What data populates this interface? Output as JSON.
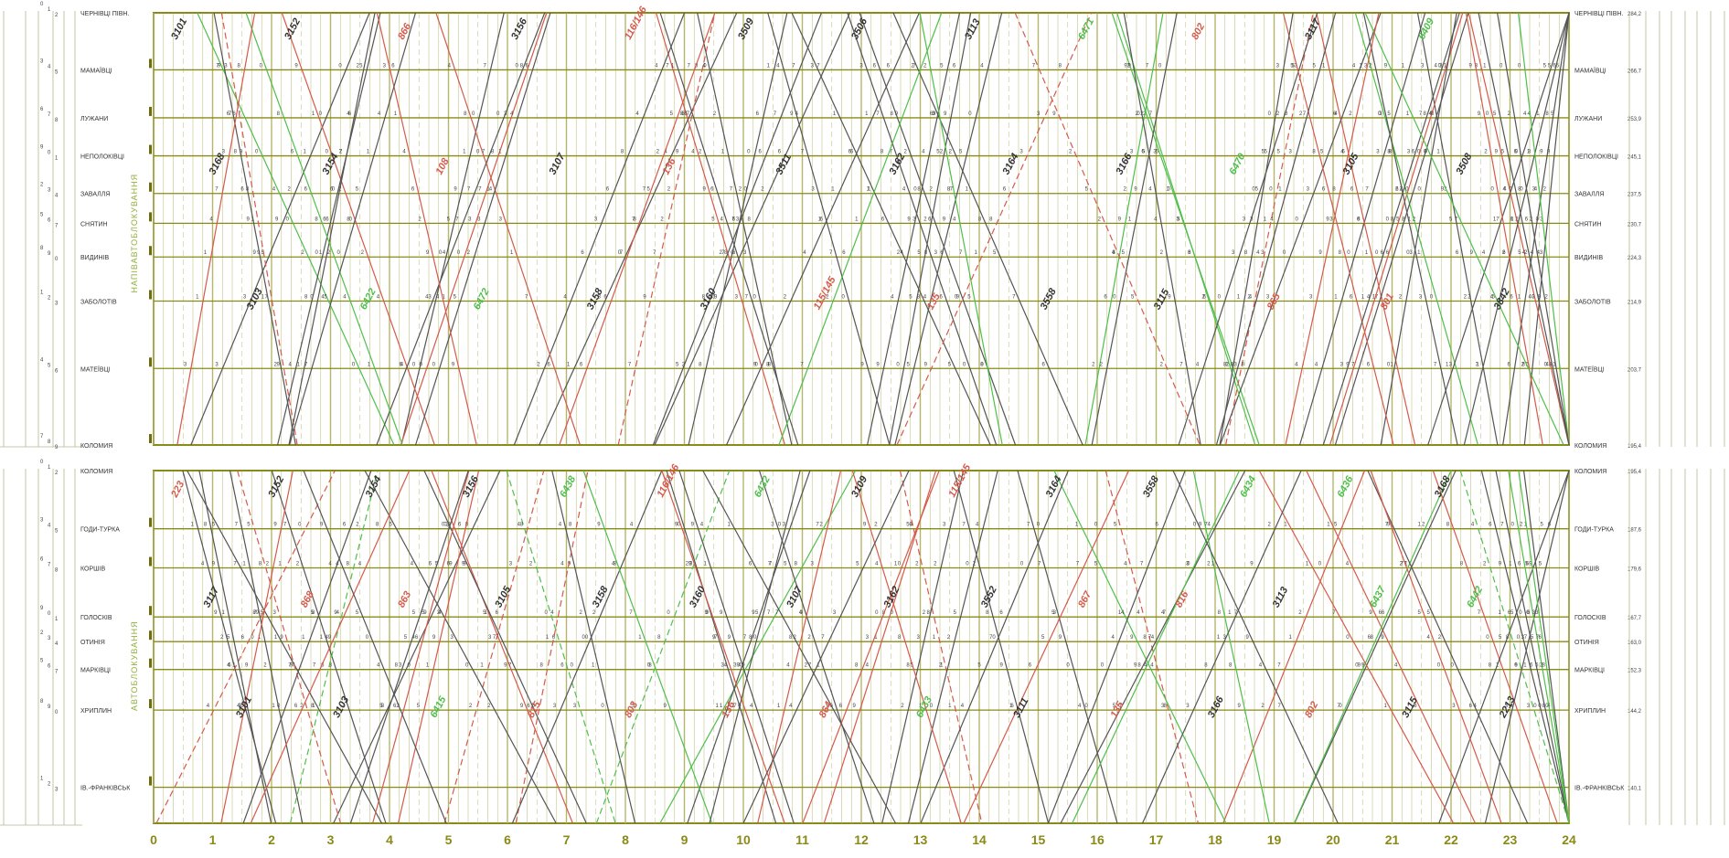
{
  "colors": {
    "frame": "#8a8a18",
    "grid": "#b5b66a",
    "freight": "#555555",
    "passenger": "#d55a4a",
    "suburban": "#4fbf4a",
    "left_table": "#b8b890"
  },
  "hours": [
    "0",
    "1",
    "2",
    "3",
    "4",
    "5",
    "6",
    "7",
    "8",
    "9",
    "10",
    "11",
    "12",
    "13",
    "14",
    "15",
    "16",
    "17",
    "18",
    "19",
    "20",
    "21",
    "22",
    "23",
    "24"
  ],
  "top_section": {
    "side_label": "НАПІВАВТОБЛОКУВАННЯ",
    "stations": [
      {
        "name": "ЧЕРНІВЦІ ПІВН.",
        "km": "284,2"
      },
      {
        "name": "МАМАЇВЦІ",
        "km": "266,7"
      },
      {
        "name": "ЛУЖАНИ",
        "km": "253,9"
      },
      {
        "name": "НЕПОЛОКІВЦІ",
        "km": "245,1"
      },
      {
        "name": "ЗАВАЛЛЯ",
        "km": "237,5"
      },
      {
        "name": "СНЯТИН",
        "km": "230,7"
      },
      {
        "name": "ВИДИНІВ",
        "km": "224,3"
      },
      {
        "name": "ЗАБОЛОТІВ",
        "km": "214,9"
      },
      {
        "name": "МАТЕЇВЦІ",
        "km": "203,7"
      },
      {
        "name": "КОЛОМИЯ",
        "km": "195,4"
      }
    ],
    "labels": [
      {
        "t": "3101",
        "type": "freight"
      },
      {
        "t": "3168",
        "type": "freight"
      },
      {
        "t": "3103",
        "type": "freight"
      },
      {
        "t": "3152",
        "type": "freight"
      },
      {
        "t": "3154",
        "type": "freight"
      },
      {
        "t": "6422",
        "type": "suburban"
      },
      {
        "t": "866",
        "type": "passenger"
      },
      {
        "t": "108",
        "type": "passenger"
      },
      {
        "t": "6472",
        "type": "suburban"
      },
      {
        "t": "3156",
        "type": "freight"
      },
      {
        "t": "3107",
        "type": "freight"
      },
      {
        "t": "3158",
        "type": "freight"
      },
      {
        "t": "116/146",
        "type": "passenger"
      },
      {
        "t": "136",
        "type": "passenger"
      },
      {
        "t": "3160",
        "type": "freight"
      },
      {
        "t": "3509",
        "type": "freight"
      },
      {
        "t": "3511",
        "type": "freight"
      },
      {
        "t": "115/145",
        "type": "passenger"
      },
      {
        "t": "3506",
        "type": "freight"
      },
      {
        "t": "3162",
        "type": "freight"
      },
      {
        "t": "135",
        "type": "passenger"
      },
      {
        "t": "3113",
        "type": "freight"
      },
      {
        "t": "3164",
        "type": "freight"
      },
      {
        "t": "3558",
        "type": "freight"
      },
      {
        "t": "6471",
        "type": "suburban"
      },
      {
        "t": "3166",
        "type": "freight"
      },
      {
        "t": "3115",
        "type": "freight"
      },
      {
        "t": "802",
        "type": "passenger"
      },
      {
        "t": "6470",
        "type": "suburban"
      },
      {
        "t": "865",
        "type": "passenger"
      },
      {
        "t": "3117",
        "type": "freight"
      },
      {
        "t": "3105",
        "type": "freight"
      },
      {
        "t": "801",
        "type": "passenger"
      },
      {
        "t": "6409",
        "type": "suburban"
      },
      {
        "t": "3508",
        "type": "freight"
      },
      {
        "t": "3842",
        "type": "freight"
      }
    ]
  },
  "bottom_section": {
    "side_label": "АВТОБЛОКУВАННЯ",
    "stations": [
      {
        "name": "КОЛОМИЯ",
        "km": "195,4"
      },
      {
        "name": "ГОДИ-ТУРКА",
        "km": "187,6"
      },
      {
        "name": "КОРШІВ",
        "km": "179,6"
      },
      {
        "name": "ГОЛОСКІВ",
        "km": "167,7"
      },
      {
        "name": "ОТИНІЯ",
        "km": "163,0"
      },
      {
        "name": "МАРКІВЦІ",
        "km": "152,3"
      },
      {
        "name": "ХРИПЛИН",
        "km": "144,2"
      },
      {
        "name": "ІВ.-ФРАНКІВСЬК",
        "km": "140,1"
      }
    ],
    "labels": [
      {
        "t": "223",
        "type": "passenger"
      },
      {
        "t": "3117",
        "type": "freight"
      },
      {
        "t": "3101",
        "type": "freight"
      },
      {
        "t": "3152",
        "type": "freight"
      },
      {
        "t": "868",
        "type": "passenger"
      },
      {
        "t": "3103",
        "type": "freight"
      },
      {
        "t": "3154",
        "type": "freight"
      },
      {
        "t": "863",
        "type": "passenger"
      },
      {
        "t": "6415",
        "type": "suburban"
      },
      {
        "t": "3156",
        "type": "freight"
      },
      {
        "t": "3105",
        "type": "freight"
      },
      {
        "t": "815",
        "type": "passenger"
      },
      {
        "t": "6438",
        "type": "suburban"
      },
      {
        "t": "3158",
        "type": "freight"
      },
      {
        "t": "803",
        "type": "passenger"
      },
      {
        "t": "116/146",
        "type": "passenger"
      },
      {
        "t": "3160",
        "type": "freight"
      },
      {
        "t": "136",
        "type": "passenger"
      },
      {
        "t": "6432",
        "type": "suburban"
      },
      {
        "t": "3107",
        "type": "freight"
      },
      {
        "t": "864",
        "type": "passenger"
      },
      {
        "t": "3109",
        "type": "freight"
      },
      {
        "t": "3162",
        "type": "freight"
      },
      {
        "t": "6433",
        "type": "suburban"
      },
      {
        "t": "115/145",
        "type": "passenger"
      },
      {
        "t": "3552",
        "type": "freight"
      },
      {
        "t": "3111",
        "type": "freight"
      },
      {
        "t": "3164",
        "type": "freight"
      },
      {
        "t": "867",
        "type": "passenger"
      },
      {
        "t": "135",
        "type": "passenger"
      },
      {
        "t": "3558",
        "type": "freight"
      },
      {
        "t": "816",
        "type": "passenger"
      },
      {
        "t": "3166",
        "type": "freight"
      },
      {
        "t": "6434",
        "type": "suburban"
      },
      {
        "t": "3113",
        "type": "freight"
      },
      {
        "t": "802",
        "type": "passenger"
      },
      {
        "t": "6436",
        "type": "suburban"
      },
      {
        "t": "6437",
        "type": "suburban"
      },
      {
        "t": "3115",
        "type": "freight"
      },
      {
        "t": "3168",
        "type": "freight"
      },
      {
        "t": "6442",
        "type": "suburban"
      },
      {
        "t": "2213",
        "type": "freight"
      }
    ]
  }
}
